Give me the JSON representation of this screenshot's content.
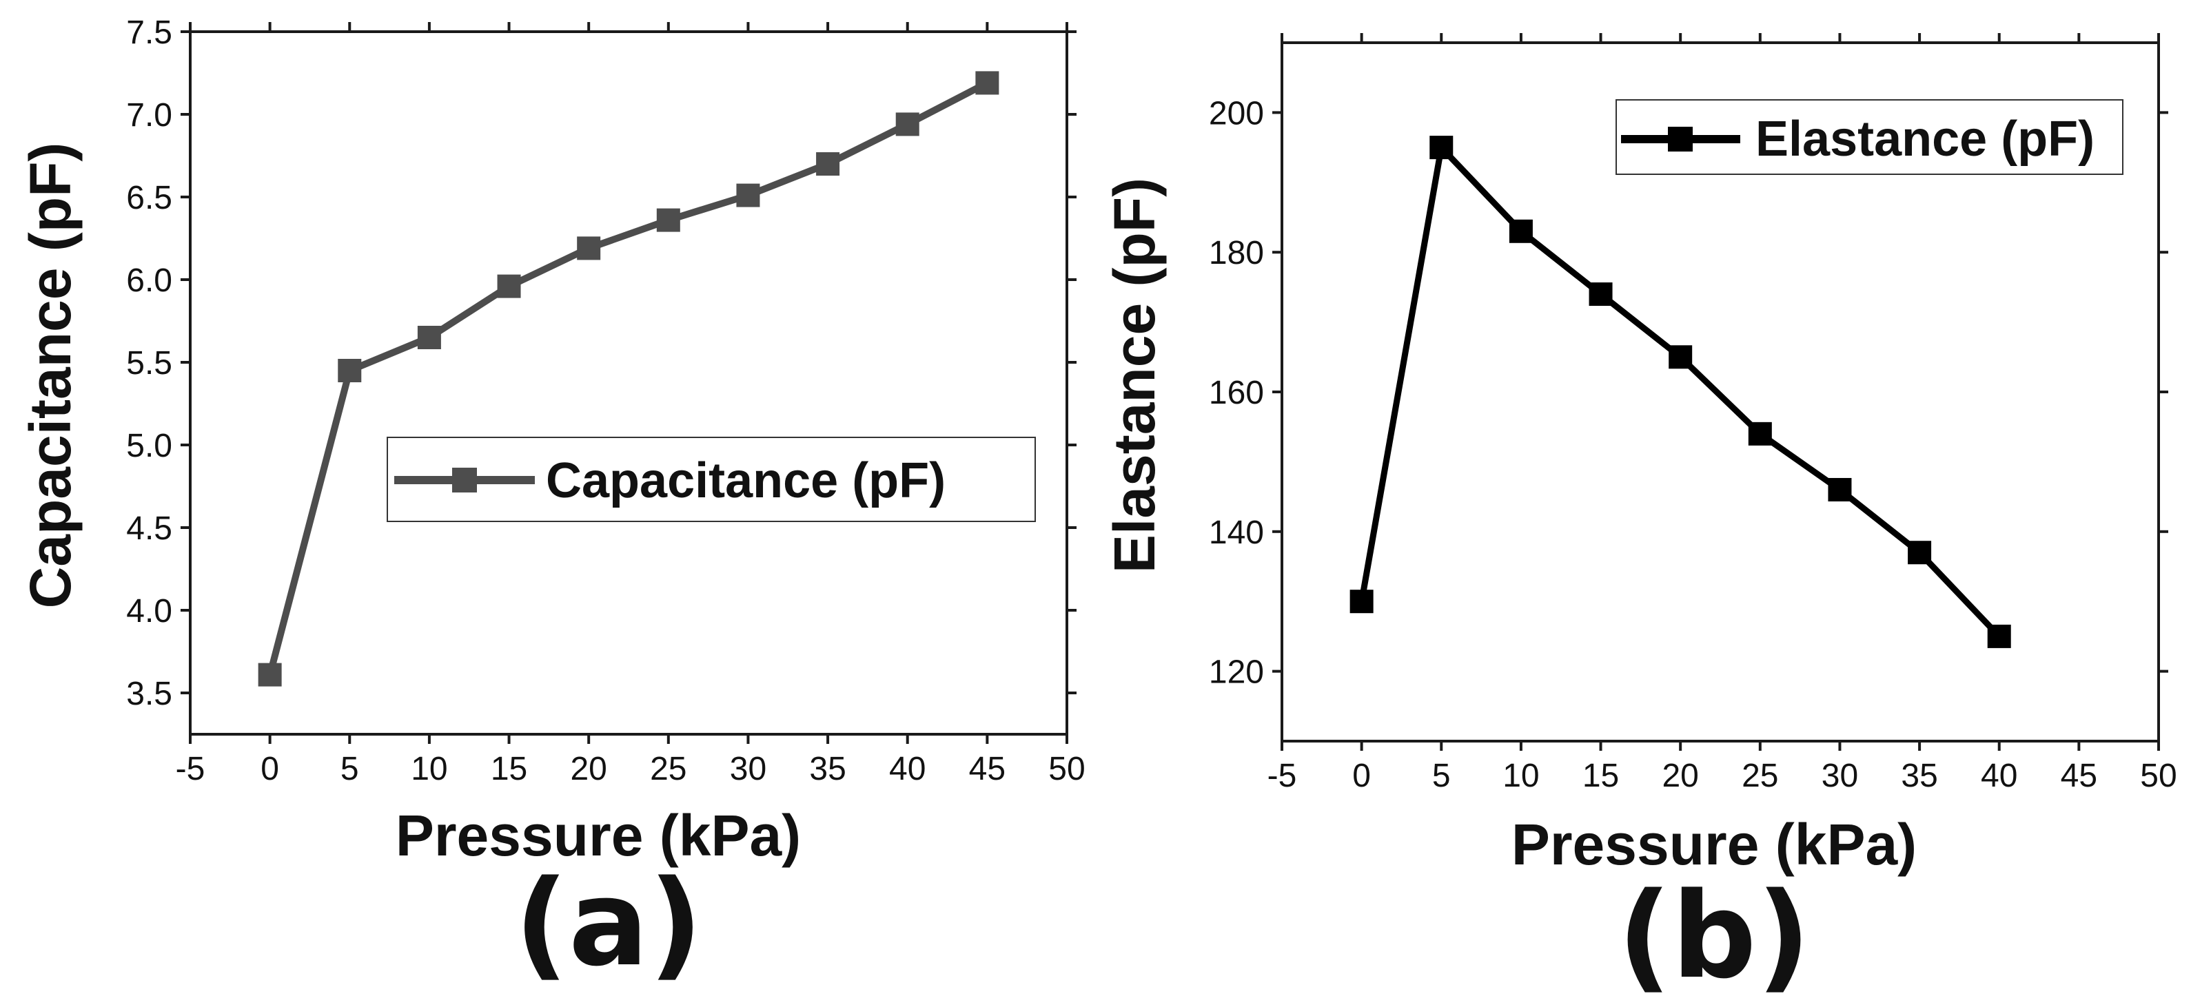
{
  "chart_data": [
    {
      "type": "line",
      "panel_label": "(a)",
      "title": "",
      "xlabel": "Pressure (kPa)",
      "ylabel": "Capacitance (pF)",
      "xlim": [
        -5,
        50
      ],
      "ylim": [
        3.25,
        7.5
      ],
      "x_ticks": [
        -5,
        0,
        5,
        10,
        15,
        20,
        25,
        30,
        35,
        40,
        45,
        50
      ],
      "y_ticks": [
        3.5,
        4.0,
        4.5,
        5.0,
        5.5,
        6.0,
        6.5,
        7.0,
        7.5
      ],
      "y_tick_decimals": 1,
      "grid": false,
      "legend_position": "center-right",
      "color": "#4d4d4d",
      "marker": "square",
      "series": [
        {
          "name": "Capacitance (pF)",
          "x": [
            0,
            5,
            10,
            15,
            20,
            25,
            30,
            35,
            40,
            45
          ],
          "values": [
            3.61,
            5.45,
            5.65,
            5.96,
            6.19,
            6.36,
            6.51,
            6.7,
            6.94,
            7.19
          ]
        }
      ]
    },
    {
      "type": "line",
      "panel_label": "(b)",
      "title": "",
      "xlabel": "Pressure (kPa)",
      "ylabel": "Elastance (pF)",
      "xlim": [
        -5,
        50
      ],
      "ylim": [
        110,
        210
      ],
      "x_ticks": [
        -5,
        0,
        5,
        10,
        15,
        20,
        25,
        30,
        35,
        40,
        45,
        50
      ],
      "y_ticks": [
        120,
        140,
        160,
        180,
        200
      ],
      "y_tick_decimals": 0,
      "grid": false,
      "legend_position": "top-right",
      "color": "#000000",
      "marker": "square",
      "series": [
        {
          "name": "Elastance (pF)",
          "x": [
            0,
            5,
            10,
            15,
            20,
            25,
            30,
            35,
            40
          ],
          "values": [
            130,
            195,
            183,
            174,
            165,
            154,
            146,
            137,
            125
          ]
        }
      ]
    }
  ]
}
